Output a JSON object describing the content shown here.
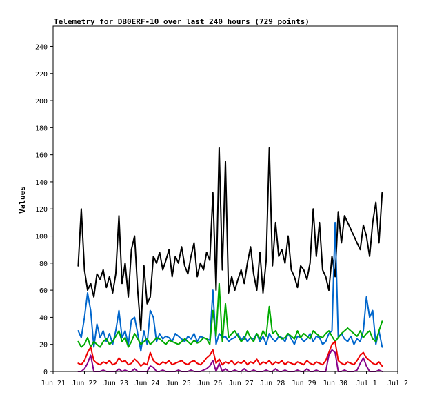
{
  "chart_data": {
    "type": "line",
    "title": "Telemetry for DB0ERF-10 over last 240 hours (729 points)",
    "ylabel": "Values",
    "xlabel": "",
    "ylim": [
      0,
      255
    ],
    "yticks": [
      0,
      20,
      40,
      60,
      80,
      100,
      120,
      140,
      160,
      180,
      200,
      220,
      240
    ],
    "xlim": [
      0,
      11
    ],
    "xticks": [
      {
        "x": 0,
        "label": "Jun 21"
      },
      {
        "x": 1,
        "label": "Jun 22"
      },
      {
        "x": 2,
        "label": "Jun 23"
      },
      {
        "x": 3,
        "label": "Jun 24"
      },
      {
        "x": 4,
        "label": "Jun 25"
      },
      {
        "x": 5,
        "label": "Jun 26"
      },
      {
        "x": 6,
        "label": "Jun 27"
      },
      {
        "x": 7,
        "label": "Jun 28"
      },
      {
        "x": 8,
        "label": "Jun 29"
      },
      {
        "x": 9,
        "label": "Jun 30"
      },
      {
        "x": 10,
        "label": "Jul 1"
      },
      {
        "x": 11,
        "label": "Jul 2"
      }
    ],
    "grid": false,
    "legend": "none",
    "series": [
      {
        "color": "#000000",
        "x": [
          0.8,
          0.9,
          1.0,
          1.1,
          1.2,
          1.3,
          1.4,
          1.5,
          1.6,
          1.7,
          1.8,
          1.9,
          2.0,
          2.1,
          2.2,
          2.3,
          2.4,
          2.5,
          2.6,
          2.7,
          2.8,
          2.9,
          3.0,
          3.1,
          3.2,
          3.3,
          3.4,
          3.5,
          3.6,
          3.7,
          3.8,
          3.9,
          4.0,
          4.1,
          4.2,
          4.3,
          4.4,
          4.5,
          4.6,
          4.7,
          4.8,
          4.9,
          5.0,
          5.1,
          5.2,
          5.3,
          5.4,
          5.5,
          5.6,
          5.7,
          5.8,
          5.9,
          6.0,
          6.1,
          6.2,
          6.3,
          6.4,
          6.5,
          6.6,
          6.7,
          6.8,
          6.9,
          7.0,
          7.1,
          7.2,
          7.3,
          7.4,
          7.5,
          7.6,
          7.7,
          7.8,
          7.9,
          8.0,
          8.1,
          8.2,
          8.3,
          8.4,
          8.5,
          8.6,
          8.7,
          8.8,
          8.9,
          9.0,
          9.1,
          9.2,
          9.3,
          9.4,
          9.5,
          9.6,
          9.7,
          9.8,
          9.9,
          10.0,
          10.1,
          10.2,
          10.3,
          10.4,
          10.5
        ],
        "values": [
          78,
          120,
          75,
          60,
          65,
          55,
          72,
          68,
          75,
          62,
          70,
          58,
          72,
          115,
          65,
          80,
          55,
          90,
          100,
          60,
          30,
          78,
          50,
          55,
          85,
          80,
          88,
          75,
          82,
          90,
          70,
          85,
          80,
          92,
          78,
          72,
          85,
          95,
          70,
          80,
          75,
          88,
          82,
          132,
          60,
          165,
          75,
          155,
          58,
          70,
          60,
          68,
          75,
          65,
          80,
          92,
          72,
          60,
          88,
          58,
          82,
          165,
          78,
          110,
          85,
          90,
          80,
          100,
          75,
          70,
          62,
          78,
          75,
          68,
          80,
          120,
          85,
          110,
          75,
          70,
          60,
          85,
          70,
          118,
          95,
          115,
          110,
          105,
          100,
          95,
          90,
          108,
          100,
          85,
          110,
          125,
          95,
          132
        ]
      },
      {
        "color": "#0066cc",
        "x": [
          0.8,
          0.9,
          1.0,
          1.1,
          1.2,
          1.3,
          1.4,
          1.5,
          1.6,
          1.7,
          1.8,
          1.9,
          2.0,
          2.1,
          2.2,
          2.3,
          2.4,
          2.5,
          2.6,
          2.7,
          2.8,
          2.9,
          3.0,
          3.1,
          3.2,
          3.3,
          3.4,
          3.5,
          3.6,
          3.7,
          3.8,
          3.9,
          4.0,
          4.1,
          4.2,
          4.3,
          4.4,
          4.5,
          4.6,
          4.7,
          4.8,
          4.9,
          5.0,
          5.1,
          5.2,
          5.3,
          5.4,
          5.5,
          5.6,
          5.7,
          5.8,
          5.9,
          6.0,
          6.1,
          6.2,
          6.3,
          6.4,
          6.5,
          6.6,
          6.7,
          6.8,
          6.9,
          7.0,
          7.1,
          7.2,
          7.3,
          7.4,
          7.5,
          7.6,
          7.7,
          7.8,
          7.9,
          8.0,
          8.1,
          8.2,
          8.3,
          8.4,
          8.5,
          8.6,
          8.7,
          8.8,
          8.9,
          9.0,
          9.1,
          9.2,
          9.3,
          9.4,
          9.5,
          9.6,
          9.7,
          9.8,
          9.9,
          10.0,
          10.1,
          10.2,
          10.3,
          10.4,
          10.5
        ],
        "values": [
          30,
          25,
          40,
          58,
          45,
          18,
          35,
          25,
          30,
          22,
          28,
          20,
          30,
          45,
          25,
          30,
          20,
          38,
          40,
          28,
          15,
          30,
          20,
          45,
          40,
          22,
          28,
          24,
          26,
          25,
          22,
          28,
          26,
          24,
          22,
          26,
          24,
          28,
          22,
          26,
          25,
          24,
          23,
          60,
          20,
          28,
          25,
          26,
          22,
          24,
          25,
          28,
          23,
          26,
          22,
          25,
          24,
          28,
          22,
          26,
          20,
          28,
          24,
          22,
          26,
          25,
          22,
          28,
          24,
          20,
          26,
          25,
          22,
          24,
          28,
          22,
          26,
          25,
          20,
          22,
          28,
          30,
          110,
          25,
          28,
          24,
          22,
          26,
          20,
          24,
          22,
          30,
          55,
          40,
          45,
          20,
          30,
          18
        ]
      },
      {
        "color": "#00aa00",
        "x": [
          0.8,
          0.9,
          1.0,
          1.1,
          1.2,
          1.3,
          1.4,
          1.5,
          1.6,
          1.7,
          1.8,
          1.9,
          2.0,
          2.1,
          2.2,
          2.3,
          2.4,
          2.5,
          2.6,
          2.7,
          2.8,
          2.9,
          3.0,
          3.1,
          3.2,
          3.3,
          3.4,
          3.5,
          3.6,
          3.7,
          3.8,
          3.9,
          4.0,
          4.1,
          4.2,
          4.3,
          4.4,
          4.5,
          4.6,
          4.7,
          4.8,
          4.9,
          5.0,
          5.1,
          5.2,
          5.3,
          5.4,
          5.5,
          5.6,
          5.7,
          5.8,
          5.9,
          6.0,
          6.1,
          6.2,
          6.3,
          6.4,
          6.5,
          6.6,
          6.7,
          6.8,
          6.9,
          7.0,
          7.1,
          7.2,
          7.3,
          7.4,
          7.5,
          7.6,
          7.7,
          7.8,
          7.9,
          8.0,
          8.1,
          8.2,
          8.3,
          8.4,
          8.5,
          8.6,
          8.7,
          8.8,
          8.9,
          9.0,
          9.1,
          9.2,
          9.3,
          9.4,
          9.5,
          9.6,
          9.7,
          9.8,
          9.9,
          10.0,
          10.1,
          10.2,
          10.3,
          10.4,
          10.5
        ],
        "values": [
          22,
          18,
          20,
          25,
          18,
          22,
          20,
          18,
          22,
          24,
          20,
          22,
          26,
          30,
          22,
          25,
          18,
          22,
          28,
          24,
          20,
          22,
          24,
          20,
          22,
          25,
          24,
          22,
          20,
          23,
          22,
          21,
          20,
          22,
          24,
          22,
          20,
          23,
          21,
          22,
          25,
          24,
          20,
          45,
          26,
          65,
          22,
          50,
          25,
          28,
          30,
          26,
          22,
          24,
          30,
          25,
          22,
          28,
          24,
          30,
          26,
          48,
          28,
          30,
          26,
          24,
          25,
          28,
          26,
          24,
          30,
          25,
          28,
          26,
          24,
          30,
          28,
          26,
          25,
          28,
          30,
          26,
          22,
          25,
          28,
          30,
          32,
          30,
          28,
          26,
          30,
          25,
          28,
          30,
          24,
          22,
          30,
          37
        ]
      },
      {
        "color": "#ee0000",
        "x": [
          0.8,
          0.9,
          1.0,
          1.1,
          1.2,
          1.3,
          1.4,
          1.5,
          1.6,
          1.7,
          1.8,
          1.9,
          2.0,
          2.1,
          2.2,
          2.3,
          2.4,
          2.5,
          2.6,
          2.7,
          2.8,
          2.9,
          3.0,
          3.1,
          3.2,
          3.3,
          3.4,
          3.5,
          3.6,
          3.7,
          3.8,
          3.9,
          4.0,
          4.1,
          4.2,
          4.3,
          4.4,
          4.5,
          4.6,
          4.7,
          4.8,
          4.9,
          5.0,
          5.1,
          5.2,
          5.3,
          5.4,
          5.5,
          5.6,
          5.7,
          5.8,
          5.9,
          6.0,
          6.1,
          6.2,
          6.3,
          6.4,
          6.5,
          6.6,
          6.7,
          6.8,
          6.9,
          7.0,
          7.1,
          7.2,
          7.3,
          7.4,
          7.5,
          7.6,
          7.7,
          7.8,
          7.9,
          8.0,
          8.1,
          8.2,
          8.3,
          8.4,
          8.5,
          8.6,
          8.7,
          8.8,
          8.9,
          9.0,
          9.1,
          9.2,
          9.3,
          9.4,
          9.5,
          9.6,
          9.7,
          9.8,
          9.9,
          10.0,
          10.1,
          10.2,
          10.3,
          10.4,
          10.5
        ],
        "values": [
          6,
          5,
          8,
          14,
          18,
          8,
          6,
          5,
          7,
          6,
          8,
          5,
          6,
          10,
          7,
          8,
          5,
          6,
          9,
          7,
          4,
          6,
          5,
          14,
          8,
          6,
          5,
          7,
          6,
          8,
          5,
          6,
          7,
          8,
          6,
          5,
          7,
          8,
          6,
          5,
          7,
          10,
          12,
          16,
          6,
          9,
          5,
          7,
          6,
          8,
          5,
          7,
          6,
          8,
          5,
          7,
          6,
          9,
          5,
          7,
          6,
          8,
          5,
          7,
          6,
          8,
          5,
          7,
          6,
          5,
          7,
          6,
          5,
          8,
          6,
          5,
          7,
          6,
          5,
          8,
          14,
          20,
          22,
          8,
          6,
          5,
          7,
          6,
          5,
          8,
          12,
          14,
          10,
          8,
          6,
          5,
          7,
          4
        ]
      },
      {
        "color": "#880088",
        "x": [
          0.8,
          0.9,
          1.0,
          1.1,
          1.2,
          1.3,
          1.4,
          1.5,
          1.6,
          1.7,
          1.8,
          1.9,
          2.0,
          2.1,
          2.2,
          2.3,
          2.4,
          2.5,
          2.6,
          2.7,
          2.8,
          2.9,
          3.0,
          3.1,
          3.2,
          3.3,
          3.4,
          3.5,
          3.6,
          3.7,
          3.8,
          3.9,
          4.0,
          4.1,
          4.2,
          4.3,
          4.4,
          4.5,
          4.6,
          4.7,
          4.8,
          4.9,
          5.0,
          5.1,
          5.2,
          5.3,
          5.4,
          5.5,
          5.6,
          5.7,
          5.8,
          5.9,
          6.0,
          6.1,
          6.2,
          6.3,
          6.4,
          6.5,
          6.6,
          6.7,
          6.8,
          6.9,
          7.0,
          7.1,
          7.2,
          7.3,
          7.4,
          7.5,
          7.6,
          7.7,
          7.8,
          7.9,
          8.0,
          8.1,
          8.2,
          8.3,
          8.4,
          8.5,
          8.6,
          8.7,
          8.8,
          8.9,
          9.0,
          9.1,
          9.2,
          9.3,
          9.4,
          9.5,
          9.6,
          9.7,
          9.8,
          9.9,
          10.0,
          10.1,
          10.2,
          10.3,
          10.4,
          10.5
        ],
        "values": [
          0,
          0,
          2,
          6,
          12,
          0,
          0,
          0,
          1,
          0,
          0,
          0,
          0,
          2,
          0,
          1,
          0,
          0,
          2,
          0,
          0,
          0,
          0,
          4,
          3,
          0,
          0,
          1,
          0,
          0,
          0,
          0,
          1,
          0,
          0,
          0,
          1,
          0,
          0,
          0,
          1,
          2,
          4,
          8,
          0,
          6,
          0,
          2,
          0,
          0,
          1,
          0,
          0,
          2,
          0,
          0,
          1,
          0,
          0,
          0,
          1,
          0,
          0,
          2,
          0,
          0,
          1,
          0,
          0,
          0,
          1,
          0,
          0,
          2,
          0,
          0,
          1,
          0,
          0,
          0,
          12,
          16,
          14,
          0,
          0,
          1,
          0,
          0,
          0,
          1,
          6,
          10,
          4,
          0,
          0,
          0,
          1,
          0
        ]
      }
    ]
  }
}
